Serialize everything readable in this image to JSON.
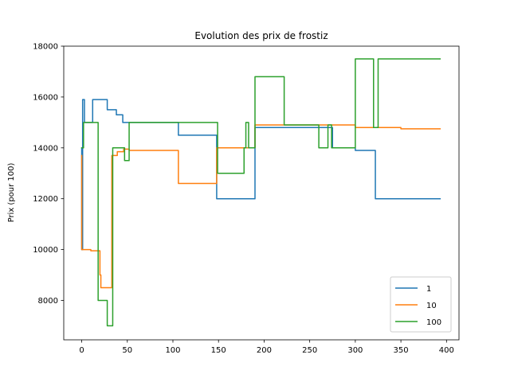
{
  "chart_data": {
    "type": "line",
    "title": "Evolution des prix de frostiz",
    "xlabel": "",
    "ylabel": "Prix (pour 100)",
    "xlim": [
      -19.7,
      413.7
    ],
    "ylim": [
      6450,
      18000
    ],
    "xticks": [
      0,
      50,
      100,
      150,
      200,
      250,
      300,
      350,
      400
    ],
    "yticks": [
      8000,
      10000,
      12000,
      14000,
      16000,
      18000
    ],
    "grid": false,
    "legend_position": "lower right",
    "series": [
      {
        "name": "1",
        "color": "#1f77b4",
        "x": [
          0,
          0,
          1,
          1,
          3,
          3,
          12,
          12,
          28,
          28,
          38,
          38,
          45,
          45,
          50,
          50,
          106,
          106,
          148,
          148,
          190,
          190,
          260,
          260,
          275,
          275,
          280,
          280,
          300,
          300,
          322,
          322,
          393
        ],
        "y": [
          14000,
          10000,
          10000,
          15900,
          15900,
          15000,
          15000,
          15900,
          15900,
          15500,
          15500,
          15300,
          15300,
          15000,
          15000,
          15000,
          15000,
          14500,
          14500,
          12000,
          12000,
          14800,
          14800,
          14800,
          14800,
          14000,
          14000,
          14000,
          14000,
          13900,
          13900,
          12000,
          12000
        ]
      },
      {
        "name": "10",
        "color": "#ff7f0e",
        "x": [
          0,
          0,
          1,
          1,
          10,
          10,
          20,
          20,
          21,
          21,
          33,
          33,
          39,
          39,
          46,
          46,
          52,
          52,
          106,
          106,
          148,
          148,
          190,
          190,
          240,
          240,
          300,
          300,
          350,
          350,
          393
        ],
        "y": [
          13700,
          10000,
          10000,
          10000,
          10000,
          9950,
          9950,
          9000,
          9000,
          8500,
          8500,
          13700,
          13700,
          13850,
          13850,
          13950,
          13950,
          13900,
          13900,
          12600,
          12600,
          14000,
          14000,
          14900,
          14900,
          14900,
          14900,
          14800,
          14800,
          14750,
          14750
        ]
      },
      {
        "name": "100",
        "color": "#2ca02c",
        "x": [
          0,
          0,
          2,
          2,
          18,
          18,
          26,
          26,
          28,
          28,
          32,
          32,
          34,
          34,
          47,
          47,
          50,
          50,
          52,
          52,
          149,
          149,
          178,
          178,
          180,
          180,
          183,
          183,
          188,
          188,
          190,
          190,
          208,
          208,
          210,
          210,
          222,
          222,
          260,
          260,
          270,
          270,
          274,
          274,
          280,
          280,
          300,
          300,
          320,
          320,
          325,
          325,
          393
        ],
        "y": [
          14000,
          14000,
          14000,
          15000,
          15000,
          8000,
          8000,
          8000,
          8000,
          7000,
          7000,
          7000,
          7000,
          14000,
          14000,
          13500,
          13500,
          13500,
          13500,
          15000,
          15000,
          13000,
          13000,
          14000,
          14000,
          15000,
          15000,
          14000,
          14000,
          14000,
          14000,
          16800,
          16800,
          16800,
          16800,
          16800,
          16800,
          14900,
          14900,
          14000,
          14000,
          14900,
          14900,
          14000,
          14000,
          14000,
          14000,
          17500,
          17500,
          14800,
          14800,
          17500,
          17500
        ]
      }
    ]
  }
}
